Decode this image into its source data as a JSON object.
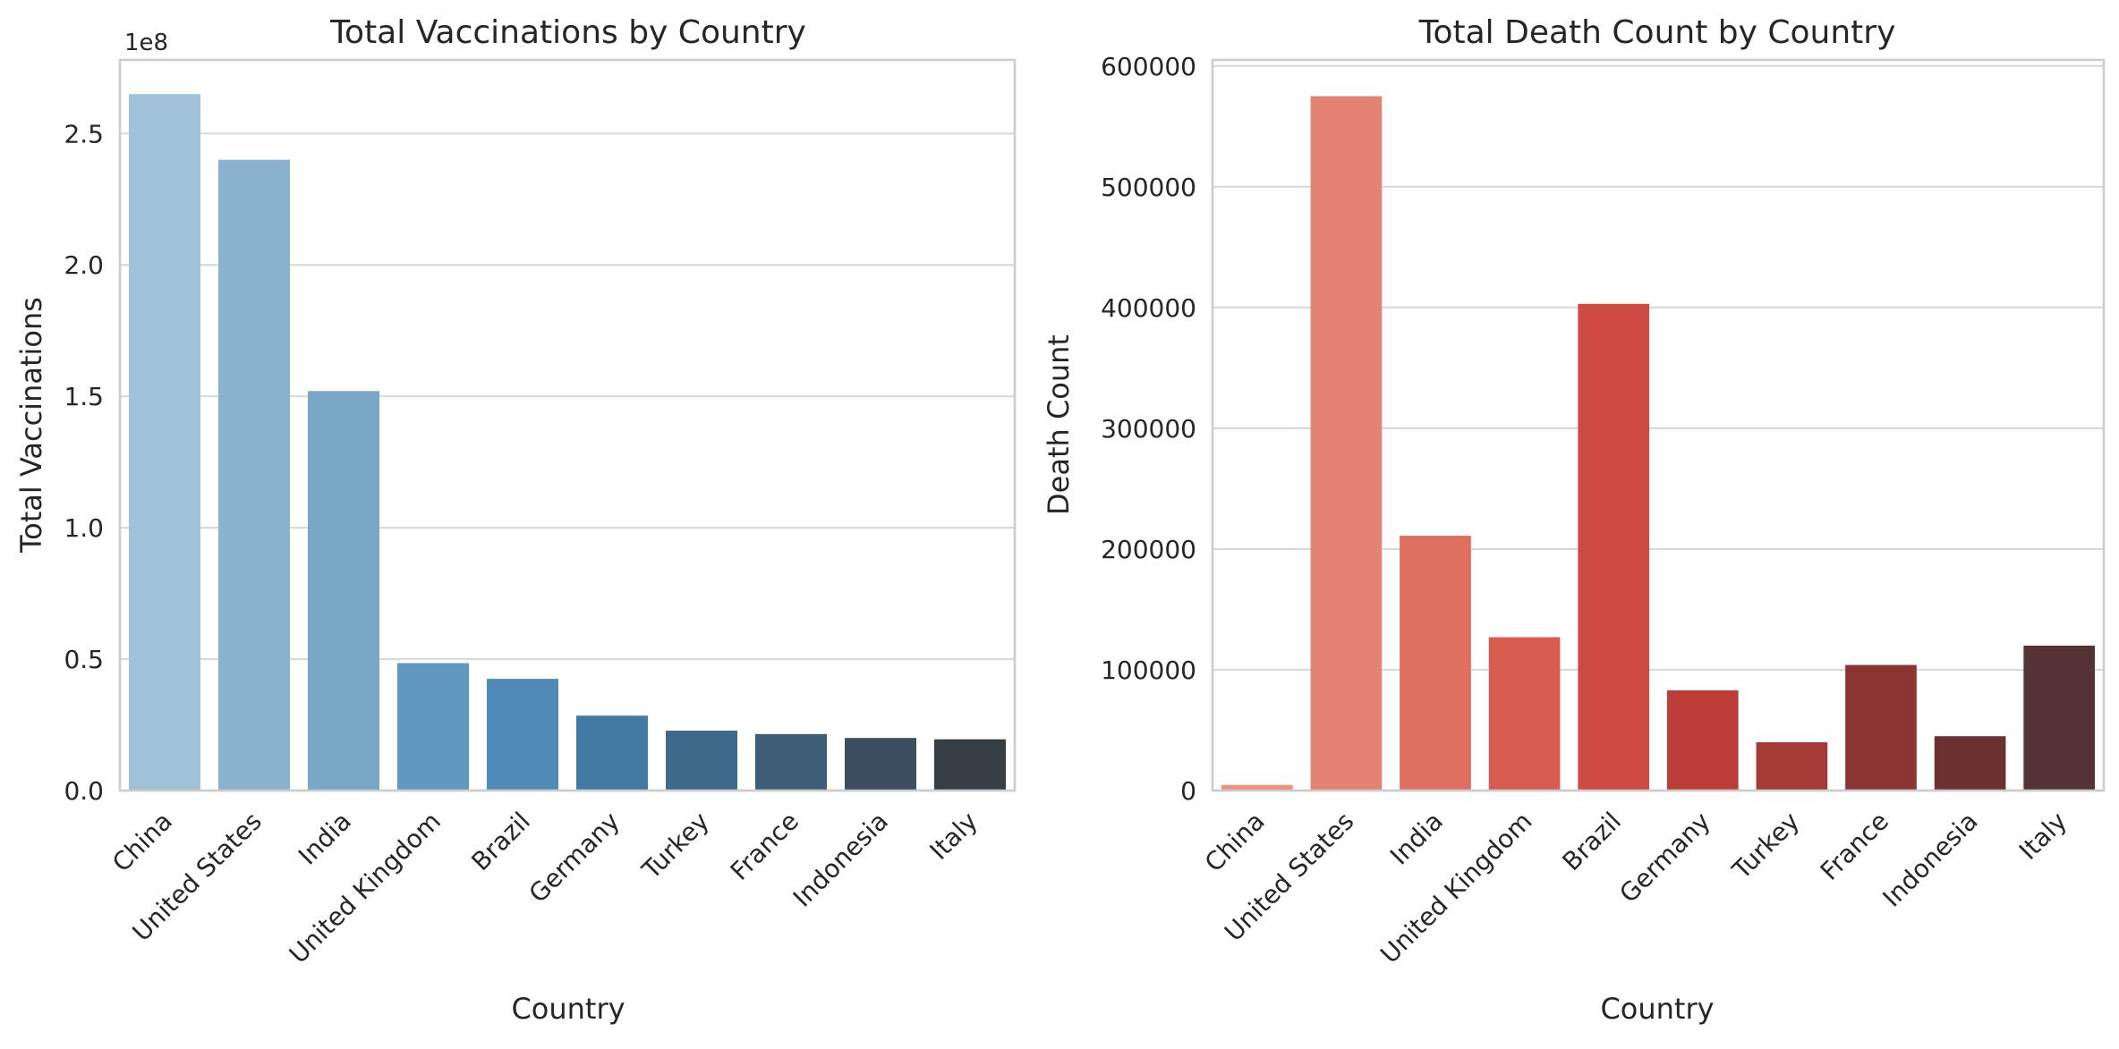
{
  "chart_data": [
    {
      "type": "bar",
      "title": "Total Vaccinations by Country",
      "xlabel": "Country",
      "ylabel": "Total Vaccinations",
      "offset_text": "1e8",
      "ylim": [
        0,
        2.78
      ],
      "yticks": [
        0.0,
        0.5,
        1.0,
        1.5,
        2.0,
        2.5
      ],
      "ytick_labels": [
        "0.0",
        "0.5",
        "1.0",
        "1.5",
        "2.0",
        "2.5"
      ],
      "grid": true,
      "categories": [
        "China",
        "United States",
        "India",
        "United Kingdom",
        "Brazil",
        "Germany",
        "Turkey",
        "France",
        "Indonesia",
        "Italy"
      ],
      "values": [
        2.65,
        2.4,
        1.52,
        0.485,
        0.425,
        0.285,
        0.228,
        0.215,
        0.2,
        0.195
      ],
      "colors": [
        "#9fc2d8",
        "#8ab2cf",
        "#78a7c8",
        "#6199c1",
        "#4f8ab8",
        "#427aa3",
        "#3d6a8a",
        "#3e5e77",
        "#3c4e5f",
        "#363f45"
      ]
    },
    {
      "type": "bar",
      "title": "Total Death Count by Country",
      "xlabel": "Country",
      "ylabel": "Death Count",
      "ylim": [
        0,
        605000
      ],
      "yticks": [
        0,
        100000,
        200000,
        300000,
        400000,
        500000,
        600000
      ],
      "ytick_labels": [
        "0",
        "100000",
        "200000",
        "300000",
        "400000",
        "500000",
        "600000"
      ],
      "grid": true,
      "categories": [
        "China",
        "United States",
        "India",
        "United Kingdom",
        "Brazil",
        "Germany",
        "Turkey",
        "France",
        "Indonesia",
        "Italy"
      ],
      "values": [
        4636,
        575000,
        211000,
        127000,
        403000,
        83000,
        40000,
        104000,
        45000,
        120000
      ],
      "colors": [
        "#f0917b",
        "#e28373",
        "#df6f61",
        "#d85c50",
        "#cf4a43",
        "#bd3e38",
        "#a63a36",
        "#8a3533",
        "#6b3131",
        "#553234"
      ]
    }
  ]
}
